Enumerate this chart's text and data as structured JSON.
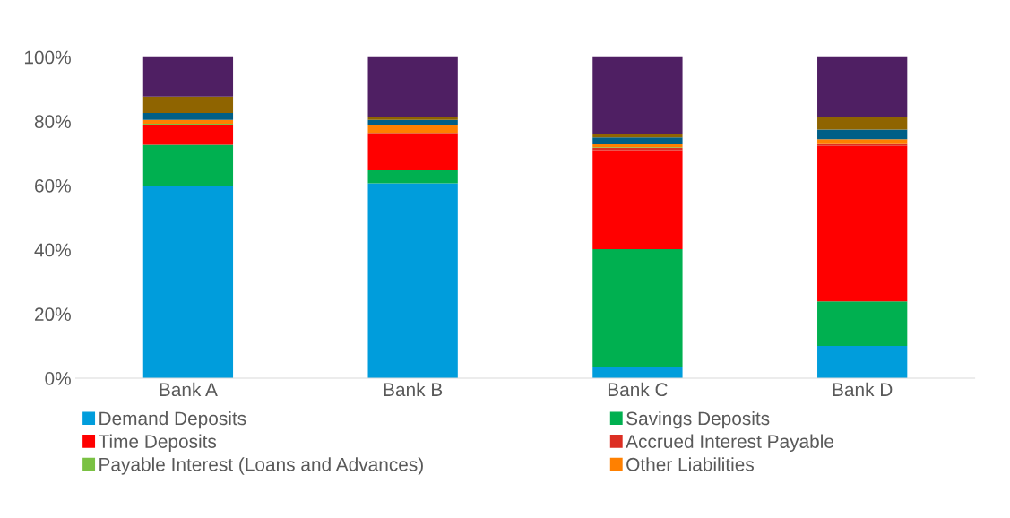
{
  "chart_data": {
    "type": "bar",
    "stacked": true,
    "categories": [
      "Bank A",
      "Bank B",
      "Bank C",
      "Bank D"
    ],
    "series": [
      {
        "name": "Demand Deposits",
        "color": "#009ddc",
        "values": [
          60.0,
          60.7,
          3.3,
          10.0
        ]
      },
      {
        "name": "Savings Deposits",
        "color": "#00b050",
        "values": [
          12.7,
          4.0,
          36.9,
          13.9
        ]
      },
      {
        "name": "Time Deposits",
        "color": "#ff0000",
        "values": [
          6.1,
          11.2,
          30.8,
          48.4
        ]
      },
      {
        "name": "Accrued Interest Payable",
        "color": "#dc2f23",
        "values": [
          0.0,
          0.5,
          0.7,
          0.6
        ]
      },
      {
        "name": "Payable Interest (Loans and Advances)",
        "color": "#7ac143",
        "values": [
          0.4,
          0.0,
          0.2,
          0.0
        ]
      },
      {
        "name": "Other Liabilities",
        "color": "#ff8000",
        "values": [
          1.2,
          2.4,
          0.9,
          1.5
        ]
      },
      {
        "color": "#005f87",
        "values": [
          2.2,
          1.6,
          2.2,
          3.0
        ]
      },
      {
        "color": "#8f6400",
        "values": [
          5.1,
          0.8,
          1.1,
          4.0
        ]
      },
      {
        "color": "#4f1f63",
        "values": [
          12.3,
          18.8,
          23.9,
          18.6
        ]
      }
    ],
    "ylim": [
      0,
      100
    ],
    "yticks": [
      {
        "value": 0,
        "label": "0%"
      },
      {
        "value": 20,
        "label": "20%"
      },
      {
        "value": 40,
        "label": "40%"
      },
      {
        "value": 60,
        "label": "60%"
      },
      {
        "value": 80,
        "label": "80%"
      },
      {
        "value": 100,
        "label": "100%"
      }
    ],
    "grid": false,
    "legend": "bottom"
  }
}
